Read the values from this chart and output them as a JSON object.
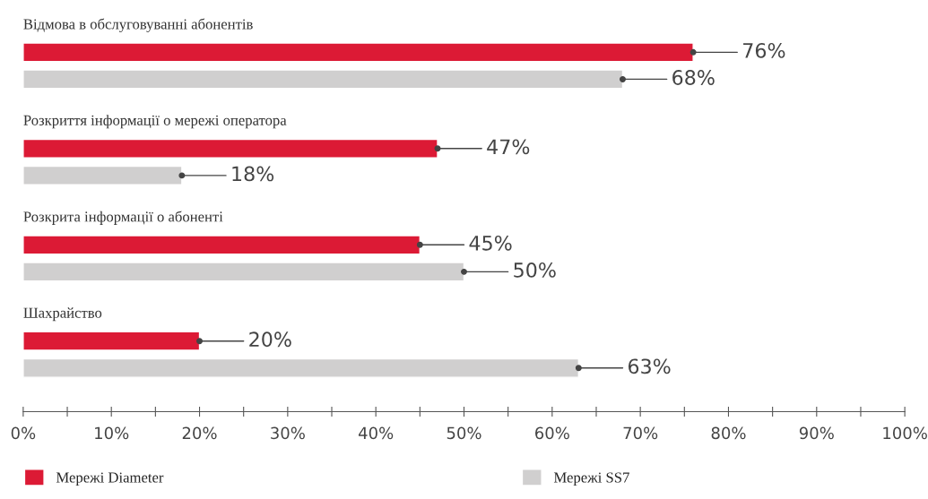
{
  "chart_data": {
    "type": "bar",
    "orientation": "horizontal",
    "categories": [
      "Відмова в обслуговуванні абонентів",
      "Розкриття інформації о мережі оператора",
      "Розкрита інформації о абоненті",
      "Шахрайство"
    ],
    "series": [
      {
        "name": "Мережі Diameter",
        "color": "#dc1a35",
        "values": [
          76,
          47,
          45,
          20
        ],
        "value_labels": [
          "76%",
          "47%",
          "45%",
          "20%"
        ]
      },
      {
        "name": "Мережі SS7",
        "color": "#d0cfcf",
        "values": [
          68,
          18,
          50,
          63
        ],
        "value_labels": [
          "68%",
          "18%",
          "50%",
          "63%"
        ]
      }
    ],
    "xlim": [
      0,
      100
    ],
    "xticks": [
      {
        "value": 0,
        "label": "0%"
      },
      {
        "value": 5,
        "label": null
      },
      {
        "value": 10,
        "label": "10%"
      },
      {
        "value": 15,
        "label": null
      },
      {
        "value": 20,
        "label": "20%"
      },
      {
        "value": 25,
        "label": null
      },
      {
        "value": 30,
        "label": "30%"
      },
      {
        "value": 35,
        "label": null
      },
      {
        "value": 40,
        "label": "40%"
      },
      {
        "value": 45,
        "label": null
      },
      {
        "value": 50,
        "label": "50%"
      },
      {
        "value": 55,
        "label": null
      },
      {
        "value": 60,
        "label": "60%"
      },
      {
        "value": 65,
        "label": null
      },
      {
        "value": 70,
        "label": "70%"
      },
      {
        "value": 75,
        "label": null
      },
      {
        "value": 80,
        "label": "80%"
      },
      {
        "value": 85,
        "label": null
      },
      {
        "value": 90,
        "label": "90%"
      },
      {
        "value": 95,
        "label": null
      },
      {
        "value": 100,
        "label": "100%"
      }
    ],
    "grid": false,
    "legend": "bottom"
  }
}
